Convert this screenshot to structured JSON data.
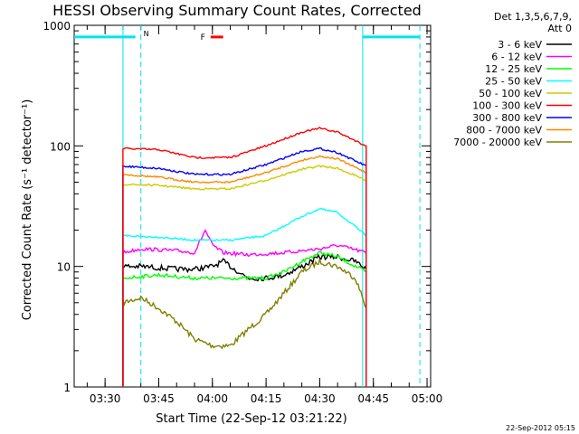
{
  "chart_data": {
    "type": "line",
    "title": "HESSI Observing Summary Count Rates, Corrected",
    "xlabel": "Start Time (22-Sep-12 03:21:22)",
    "ylabel": "Corrected Count Rate (s⁻¹ detector⁻¹)",
    "y_scale": "log",
    "ylim": [
      1,
      1000
    ],
    "xlim": [
      "03:21:22",
      "05:01:00"
    ],
    "x_ticks": [
      "03:30",
      "03:45",
      "04:00",
      "04:15",
      "04:30",
      "04:45",
      "05:00"
    ],
    "y_ticks": [
      "1",
      "10",
      "100",
      "1000"
    ],
    "legend": {
      "placement": "right",
      "header_line1": "Det 1,3,5,6,7,9,",
      "header_line2": "Att 0"
    },
    "series": [
      {
        "name": "3 - 6 keV",
        "color": "#000000",
        "x": [
          "03:35",
          "03:40",
          "03:50",
          "03:55",
          "04:00",
          "04:03",
          "04:10",
          "04:15",
          "04:20",
          "04:25",
          "04:30",
          "04:35",
          "04:40",
          "04:43"
        ],
        "y": [
          10,
          10,
          9.5,
          9.5,
          10,
          11,
          8,
          8,
          8.5,
          10,
          12,
          12,
          11,
          9.5
        ]
      },
      {
        "name": "6 - 12 keV",
        "color": "#ff00ff",
        "x": [
          "03:35",
          "03:40",
          "03:50",
          "03:55",
          "03:58",
          "04:00",
          "04:03",
          "04:10",
          "04:20",
          "04:30",
          "04:35",
          "04:43"
        ],
        "y": [
          13,
          14,
          13.5,
          13,
          20,
          15,
          13,
          12.5,
          13,
          14,
          15,
          13
        ]
      },
      {
        "name": "12 - 25 keV",
        "color": "#00ff00",
        "x": [
          "03:35",
          "03:45",
          "03:55",
          "04:05",
          "04:15",
          "04:20",
          "04:25",
          "04:30",
          "04:35",
          "04:43"
        ],
        "y": [
          8,
          8.5,
          8,
          8,
          8,
          9,
          11,
          13,
          12,
          9
        ]
      },
      {
        "name": "25 - 50 keV",
        "color": "#00ffff",
        "x": [
          "03:35",
          "03:45",
          "03:55",
          "04:05",
          "04:15",
          "04:25",
          "04:30",
          "04:35",
          "04:43"
        ],
        "y": [
          18,
          17.5,
          16.5,
          16.5,
          18,
          26,
          30,
          28,
          18
        ]
      },
      {
        "name": "50 - 100 keV",
        "color": "#cccc00",
        "x": [
          "03:35",
          "03:45",
          "03:55",
          "04:05",
          "04:15",
          "04:25",
          "04:30",
          "04:35",
          "04:43"
        ],
        "y": [
          48,
          47,
          44,
          44,
          52,
          64,
          68,
          65,
          52
        ]
      },
      {
        "name": "100 - 300 keV",
        "color": "#ff0000",
        "x": [
          "03:35",
          "03:45",
          "03:55",
          "04:05",
          "04:15",
          "04:25",
          "04:30",
          "04:35",
          "04:43"
        ],
        "y": [
          95,
          93,
          80,
          80,
          100,
          130,
          140,
          130,
          100
        ]
      },
      {
        "name": "300 - 800 keV",
        "color": "#0000ff",
        "x": [
          "03:35",
          "03:45",
          "03:55",
          "04:05",
          "04:15",
          "04:25",
          "04:30",
          "04:35",
          "04:43"
        ],
        "y": [
          68,
          65,
          58,
          58,
          70,
          90,
          95,
          88,
          68
        ]
      },
      {
        "name": "800 - 7000 keV",
        "color": "#ff8800",
        "x": [
          "03:35",
          "03:45",
          "03:55",
          "04:05",
          "04:15",
          "04:25",
          "04:30",
          "04:35",
          "04:43"
        ],
        "y": [
          58,
          55,
          50,
          50,
          60,
          76,
          82,
          78,
          60
        ]
      },
      {
        "name": "7000 - 20000 keV",
        "color": "#808000",
        "x": [
          "03:35",
          "03:40",
          "03:45",
          "03:50",
          "03:55",
          "04:00",
          "04:05",
          "04:10",
          "04:15",
          "04:20",
          "04:25",
          "04:30",
          "04:35",
          "04:40",
          "04:43"
        ],
        "y": [
          5,
          5.5,
          4.5,
          3.5,
          2.5,
          2.2,
          2.2,
          3,
          4,
          6,
          9,
          11,
          10,
          8,
          4.5
        ]
      }
    ],
    "annotations": {
      "night_flag": {
        "label": "N",
        "start": "03:21:22",
        "end": "03:40"
      },
      "night_flag_2": {
        "start": "04:42",
        "end": "04:58"
      },
      "flare_flag": {
        "label": "F",
        "start": "03:59",
        "end": "04:02",
        "level": 800
      }
    }
  },
  "footer": {
    "timestamp": "22-Sep-2012 05:15"
  }
}
